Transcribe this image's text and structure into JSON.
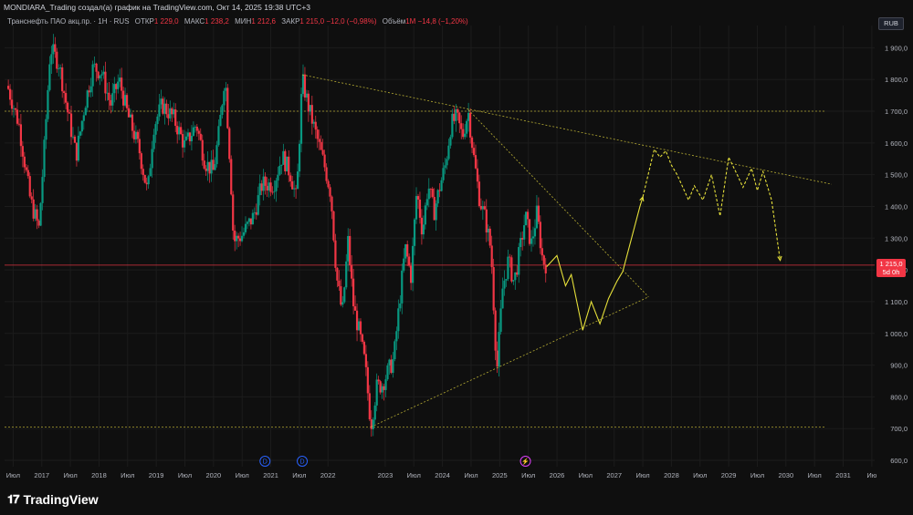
{
  "header": {
    "author_line": "MONDIARA_Trading создал(а) график на TradingView.com, Окт 14, 2025 19:38 UTC+3"
  },
  "info": {
    "symbol": "Транснефть ПАО акц.пр. · 1Н · RUS",
    "open_label": "ОТКР",
    "open_value": "1 229,0",
    "high_label": "МАКС",
    "high_value": "1 238,2",
    "low_label": "МИН",
    "low_value": "1 212,6",
    "close_label": "ЗАКР",
    "close_value": "1 215,0 −12,0 (−0,98%)",
    "volume_label": "Объём",
    "volume_value": "1M −14,8 (−1,20%)"
  },
  "currency": "RUB",
  "last_price": {
    "value": "1 215,0",
    "countdown": "5d 0h"
  },
  "logo": "TradingView",
  "colors": {
    "background": "#0f0f0f",
    "up": "#089981",
    "down": "#f23645",
    "trendline": "#d4c83a",
    "projection": "#e6e03a",
    "grid": "#1c1c1c",
    "price_line": "#f23645"
  },
  "chart_data": {
    "type": "candlestick",
    "y_ticks": [
      "1 900,0",
      "1 800,0",
      "1 700,0",
      "1 600,0",
      "1 500,0",
      "1 400,0",
      "1 300,0",
      "1 200,0",
      "1 100,0",
      "1 000,0",
      "900,0",
      "800,0",
      "700,0",
      "600,0"
    ],
    "y_tick_values": [
      1900,
      1800,
      1700,
      1600,
      1500,
      1400,
      1300,
      1200,
      1100,
      1000,
      900,
      800,
      700,
      600
    ],
    "ylim": [
      580,
      1970
    ],
    "x_ticks": [
      {
        "label": "Июл",
        "t": 2016.5
      },
      {
        "label": "2017",
        "t": 2017.0
      },
      {
        "label": "Июл",
        "t": 2017.5
      },
      {
        "label": "2018",
        "t": 2018.0
      },
      {
        "label": "Июл",
        "t": 2018.5
      },
      {
        "label": "2019",
        "t": 2019.0
      },
      {
        "label": "Июл",
        "t": 2019.5
      },
      {
        "label": "2020",
        "t": 2020.0
      },
      {
        "label": "Июл",
        "t": 2020.5
      },
      {
        "label": "2021",
        "t": 2021.0
      },
      {
        "label": "Июл",
        "t": 2021.5
      },
      {
        "label": "2022",
        "t": 2022.0
      },
      {
        "label": "2023",
        "t": 2023.0
      },
      {
        "label": "Июл",
        "t": 2023.5
      },
      {
        "label": "2024",
        "t": 2024.0
      },
      {
        "label": "Июл",
        "t": 2024.5
      },
      {
        "label": "2025",
        "t": 2025.0
      },
      {
        "label": "Июл",
        "t": 2025.5
      },
      {
        "label": "2026",
        "t": 2026.0
      },
      {
        "label": "Июл",
        "t": 2026.5
      },
      {
        "label": "2027",
        "t": 2027.0
      },
      {
        "label": "Июл",
        "t": 2027.5
      },
      {
        "label": "2028",
        "t": 2028.0
      },
      {
        "label": "Июл",
        "t": 2028.5
      },
      {
        "label": "2029",
        "t": 2029.0
      },
      {
        "label": "Июл",
        "t": 2029.5
      },
      {
        "label": "2030",
        "t": 2030.0
      },
      {
        "label": "Июл",
        "t": 2030.5
      },
      {
        "label": "2031",
        "t": 2031.0
      },
      {
        "label": "Ию",
        "t": 2031.5
      }
    ],
    "xlim": [
      2016.35,
      2031.55
    ],
    "price_path": [
      [
        2016.4,
        1780
      ],
      [
        2016.6,
        1660
      ],
      [
        2016.8,
        1420
      ],
      [
        2016.95,
        1330
      ],
      [
        2017.05,
        1600
      ],
      [
        2017.15,
        1900
      ],
      [
        2017.3,
        1850
      ],
      [
        2017.45,
        1700
      ],
      [
        2017.6,
        1560
      ],
      [
        2017.75,
        1720
      ],
      [
        2017.9,
        1840
      ],
      [
        2018.05,
        1820
      ],
      [
        2018.2,
        1720
      ],
      [
        2018.35,
        1800
      ],
      [
        2018.5,
        1690
      ],
      [
        2018.7,
        1580
      ],
      [
        2018.85,
        1440
      ],
      [
        2018.95,
        1650
      ],
      [
        2019.1,
        1720
      ],
      [
        2019.3,
        1680
      ],
      [
        2019.5,
        1590
      ],
      [
        2019.7,
        1660
      ],
      [
        2019.85,
        1540
      ],
      [
        2020.0,
        1510
      ],
      [
        2020.1,
        1640
      ],
      [
        2020.2,
        1820
      ],
      [
        2020.3,
        1500
      ],
      [
        2020.35,
        1290
      ],
      [
        2020.5,
        1310
      ],
      [
        2020.7,
        1370
      ],
      [
        2020.85,
        1470
      ],
      [
        2021.05,
        1470
      ],
      [
        2021.2,
        1560
      ],
      [
        2021.35,
        1500
      ],
      [
        2021.45,
        1420
      ],
      [
        2021.55,
        1800
      ],
      [
        2021.65,
        1720
      ],
      [
        2021.8,
        1620
      ],
      [
        2021.95,
        1520
      ],
      [
        2022.05,
        1440
      ],
      [
        2022.15,
        1180
      ],
      [
        2022.25,
        1060
      ],
      [
        2022.35,
        1290
      ],
      [
        2022.45,
        1080
      ],
      [
        2022.55,
        1000
      ],
      [
        2022.65,
        900
      ],
      [
        2022.75,
        710
      ],
      [
        2022.85,
        830
      ],
      [
        2022.95,
        840
      ],
      [
        2023.05,
        880
      ],
      [
        2023.15,
        920
      ],
      [
        2023.25,
        1100
      ],
      [
        2023.35,
        1270
      ],
      [
        2023.45,
        1180
      ],
      [
        2023.55,
        1450
      ],
      [
        2023.65,
        1320
      ],
      [
        2023.75,
        1470
      ],
      [
        2023.85,
        1380
      ],
      [
        2023.95,
        1460
      ],
      [
        2024.05,
        1530
      ],
      [
        2024.15,
        1660
      ],
      [
        2024.25,
        1680
      ],
      [
        2024.35,
        1620
      ],
      [
        2024.45,
        1700
      ],
      [
        2024.55,
        1550
      ],
      [
        2024.65,
        1420
      ],
      [
        2024.75,
        1360
      ],
      [
        2024.85,
        1260
      ],
      [
        2024.95,
        880
      ],
      [
        2025.05,
        1140
      ],
      [
        2025.15,
        1230
      ],
      [
        2025.25,
        1160
      ],
      [
        2025.35,
        1260
      ],
      [
        2025.45,
        1370
      ],
      [
        2025.55,
        1280
      ],
      [
        2025.65,
        1380
      ],
      [
        2025.75,
        1230
      ],
      [
        2025.82,
        1215
      ]
    ],
    "horizontal_levels": [
      1700,
      1215,
      705
    ],
    "trendlines": [
      {
        "from": [
          2021.55,
          1815
        ],
        "to": [
          2030.8,
          1470
        ]
      },
      {
        "from": [
          2024.45,
          1705
        ],
        "to": [
          2027.6,
          1115
        ]
      },
      {
        "from": [
          2022.75,
          705
        ],
        "to": [
          2027.6,
          1115
        ]
      }
    ],
    "projections": [
      {
        "points": [
          [
            2025.82,
            1210
          ],
          [
            2026.0,
            1245
          ],
          [
            2026.15,
            1150
          ],
          [
            2026.25,
            1185
          ],
          [
            2026.45,
            1010
          ],
          [
            2026.6,
            1100
          ],
          [
            2026.75,
            1030
          ],
          [
            2026.9,
            1110
          ],
          [
            2027.05,
            1165
          ],
          [
            2027.15,
            1195
          ],
          [
            2027.45,
            1400
          ],
          [
            2027.5,
            1430
          ]
        ],
        "dashed": false
      },
      {
        "points": [
          [
            2027.5,
            1430
          ],
          [
            2027.7,
            1580
          ],
          [
            2027.8,
            1555
          ],
          [
            2027.9,
            1575
          ],
          [
            2028.0,
            1530
          ],
          [
            2028.1,
            1500
          ],
          [
            2028.3,
            1420
          ],
          [
            2028.4,
            1465
          ],
          [
            2028.55,
            1420
          ],
          [
            2028.7,
            1500
          ],
          [
            2028.85,
            1370
          ],
          [
            2029.0,
            1555
          ],
          [
            2029.15,
            1500
          ],
          [
            2029.25,
            1460
          ],
          [
            2029.4,
            1520
          ],
          [
            2029.5,
            1450
          ],
          [
            2029.6,
            1510
          ],
          [
            2029.75,
            1420
          ],
          [
            2029.9,
            1230
          ]
        ],
        "dashed": true
      }
    ],
    "event_markers": [
      {
        "t": 2020.9,
        "label": "D"
      },
      {
        "t": 2021.55,
        "label": "D"
      },
      {
        "t": 2025.45,
        "label": "⚡"
      }
    ]
  }
}
